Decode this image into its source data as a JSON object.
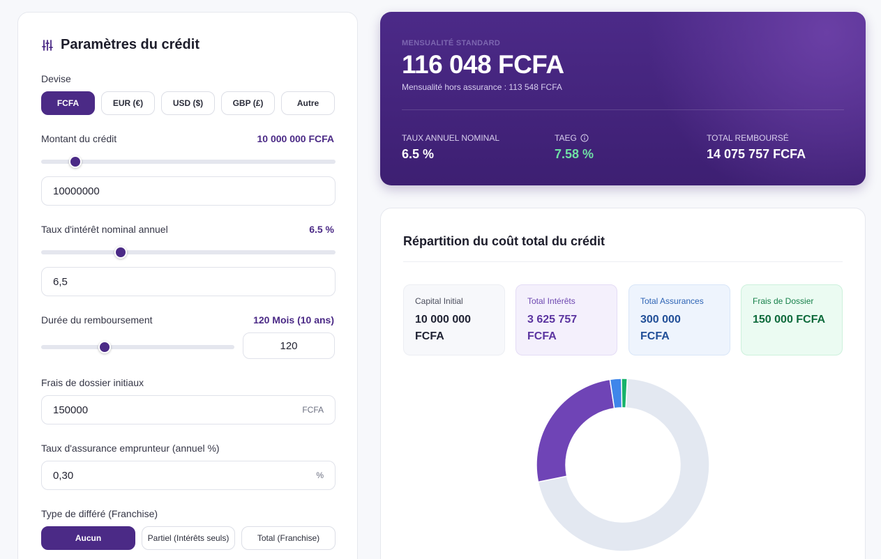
{
  "params": {
    "title": "Paramètres du crédit",
    "currency_label": "Devise",
    "currencies": [
      "FCFA",
      "EUR (€)",
      "USD ($)",
      "GBP (£)",
      "Autre"
    ],
    "amount_label": "Montant du crédit",
    "amount_display": "10 000 000 FCFA",
    "amount_input": "10000000",
    "amount_slider_fraction": 0.115,
    "rate_label": "Taux d'intérêt nominal annuel",
    "rate_display": "6.5 %",
    "rate_input": "6,5",
    "rate_slider_fraction": 0.27,
    "duration_label": "Durée du remboursement",
    "duration_display": "120 Mois (10 ans)",
    "duration_input": "120",
    "duration_slider_fraction": 0.33,
    "fees_label": "Frais de dossier initiaux",
    "fees_input": "150000",
    "fees_suffix": "FCFA",
    "insurance_label": "Taux d'assurance emprunteur (annuel %)",
    "insurance_input": "0,30",
    "insurance_suffix": "%",
    "deferral_label": "Type de différé (Franchise)",
    "deferral_options": [
      "Aucun",
      "Partiel (Intérêts seuls)",
      "Total (Franchise)"
    ]
  },
  "summary": {
    "caption": "MENSUALITÉ STANDARD",
    "amount": "116 048 FCFA",
    "subtitle": "Mensualité hors assurance : 113 548 FCFA",
    "stats": [
      {
        "label": "TAUX ANNUEL NOMINAL",
        "value": "6.5 %"
      },
      {
        "label": "TAEG",
        "value": "7.58 %"
      },
      {
        "label": "TOTAL REMBOURSÉ",
        "value": "14 075 757 FCFA"
      }
    ]
  },
  "breakdown": {
    "title": "Répartition du coût total du crédit",
    "tiles": [
      {
        "label": "Capital Initial",
        "value_line1": "10 000 000",
        "value_line2": "FCFA",
        "bg": "#f7f8fb",
        "border": "#eceef3",
        "label_color": "#4a4d5c",
        "value_color": "#1f2233"
      },
      {
        "label": "Total Intérêts",
        "value_line1": "3 625 757",
        "value_line2": "FCFA",
        "bg": "#f4f0fc",
        "border": "#e4dcf5",
        "label_color": "#6c46b0",
        "value_color": "#5b34a0"
      },
      {
        "label": "Total Assurances",
        "value_line1": "300 000",
        "value_line2": "FCFA",
        "bg": "#eef4fd",
        "border": "#d9e6f8",
        "label_color": "#2e64b5",
        "value_color": "#214f98"
      },
      {
        "label": "Frais de Dossier",
        "value_line1": "150 000 FCFA",
        "value_line2": "",
        "bg": "#ebfbf2",
        "border": "#cdf1dc",
        "label_color": "#16804a",
        "value_color": "#0e6b3c"
      }
    ]
  },
  "chart_data": {
    "type": "pie",
    "categories": [
      "Capital Initial",
      "Total Intérêts",
      "Total Assurances",
      "Frais de Dossier"
    ],
    "values": [
      10000000,
      3625757,
      300000,
      150000
    ],
    "colors": [
      "#e3e8f1",
      "#6f44b6",
      "#3f86ea",
      "#17b26a"
    ],
    "title": ""
  }
}
